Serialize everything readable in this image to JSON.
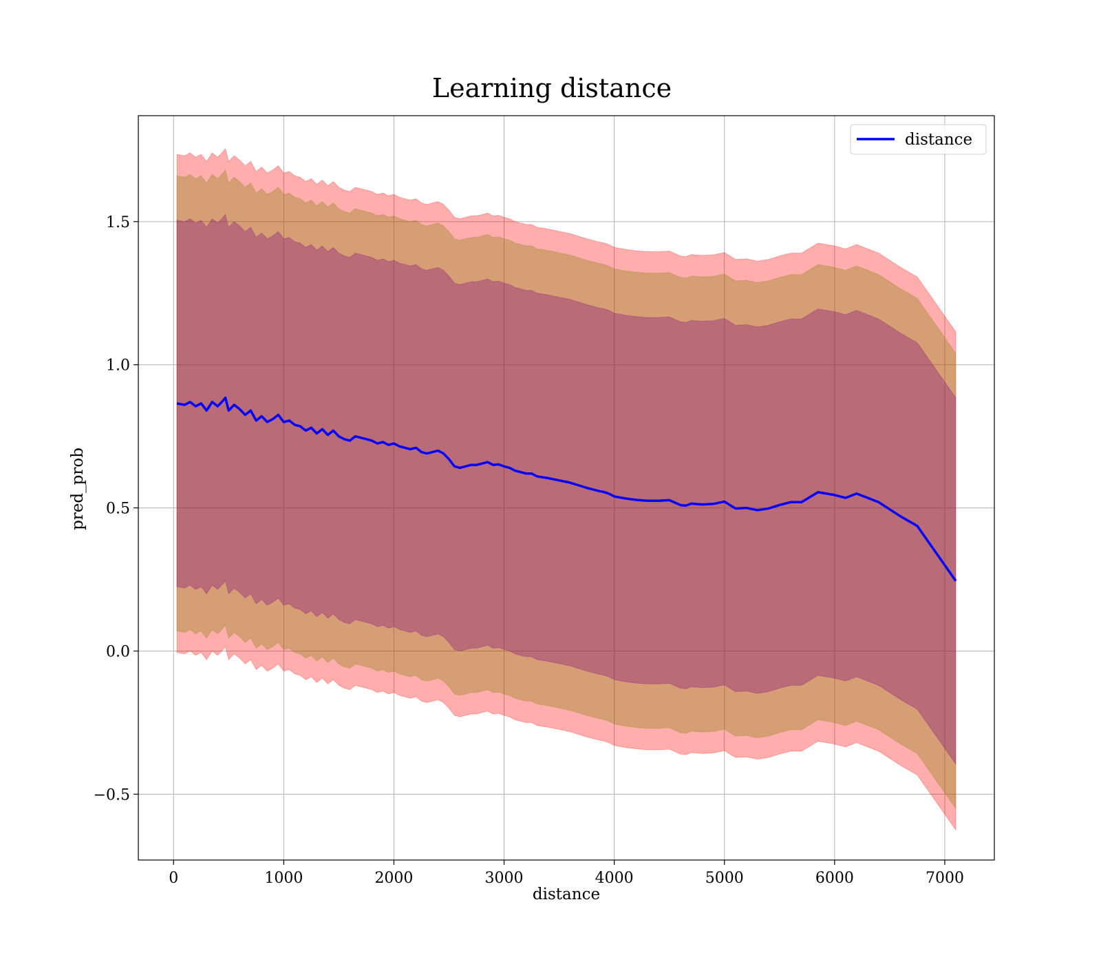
{
  "chart_data": {
    "type": "line",
    "title": "Learning distance",
    "xlabel": "distance",
    "ylabel": "pred_prob",
    "xlim": [
      -320,
      7450
    ],
    "ylim": [
      -0.73,
      1.87
    ],
    "xticks": [
      0,
      1000,
      2000,
      3000,
      4000,
      5000,
      6000,
      7000
    ],
    "yticks": [
      -0.5,
      0.0,
      0.5,
      1.0,
      1.5
    ],
    "xtick_labels": [
      "0",
      "1000",
      "2000",
      "3000",
      "4000",
      "5000",
      "6000",
      "7000"
    ],
    "ytick_labels": [
      "−0.5",
      "0.0",
      "0.5",
      "1.0",
      "1.5"
    ],
    "grid": true,
    "legend_position": "upper-right",
    "series": [
      {
        "name": "distance",
        "color": "#0000ff",
        "x": [
          30,
          100,
          150,
          200,
          250,
          300,
          350,
          400,
          450,
          470,
          500,
          550,
          600,
          650,
          700,
          750,
          800,
          850,
          900,
          950,
          1000,
          1050,
          1100,
          1150,
          1200,
          1250,
          1300,
          1350,
          1400,
          1450,
          1500,
          1550,
          1600,
          1650,
          1700,
          1750,
          1800,
          1850,
          1900,
          1950,
          2000,
          2050,
          2100,
          2150,
          2200,
          2250,
          2300,
          2350,
          2400,
          2450,
          2500,
          2550,
          2600,
          2650,
          2700,
          2750,
          2800,
          2850,
          2900,
          2950,
          3000,
          3050,
          3100,
          3150,
          3200,
          3250,
          3300,
          3350,
          3400,
          3450,
          3500,
          3550,
          3600,
          3650,
          3700,
          3750,
          3800,
          3850,
          3900,
          3950,
          4000,
          4100,
          4200,
          4300,
          4400,
          4500,
          4600,
          4650,
          4700,
          4800,
          4900,
          5000,
          5100,
          5200,
          5300,
          5400,
          5500,
          5600,
          5700,
          5850,
          6000,
          6100,
          6200,
          6300,
          6400,
          6500,
          6600,
          6750,
          7100
        ],
        "values": [
          0.865,
          0.86,
          0.87,
          0.855,
          0.865,
          0.84,
          0.87,
          0.855,
          0.875,
          0.885,
          0.84,
          0.86,
          0.845,
          0.825,
          0.84,
          0.805,
          0.82,
          0.8,
          0.81,
          0.825,
          0.8,
          0.805,
          0.79,
          0.785,
          0.77,
          0.78,
          0.76,
          0.775,
          0.755,
          0.77,
          0.75,
          0.74,
          0.735,
          0.75,
          0.745,
          0.74,
          0.735,
          0.725,
          0.73,
          0.72,
          0.725,
          0.715,
          0.71,
          0.705,
          0.71,
          0.695,
          0.69,
          0.695,
          0.7,
          0.69,
          0.67,
          0.645,
          0.64,
          0.645,
          0.65,
          0.65,
          0.655,
          0.66,
          0.65,
          0.652,
          0.645,
          0.64,
          0.63,
          0.625,
          0.62,
          0.62,
          0.61,
          0.607,
          0.604,
          0.6,
          0.596,
          0.592,
          0.588,
          0.582,
          0.576,
          0.57,
          0.565,
          0.56,
          0.556,
          0.55,
          0.54,
          0.533,
          0.528,
          0.525,
          0.525,
          0.527,
          0.51,
          0.508,
          0.515,
          0.512,
          0.514,
          0.522,
          0.498,
          0.5,
          0.492,
          0.498,
          0.51,
          0.52,
          0.52,
          0.555,
          0.545,
          0.535,
          0.55,
          0.535,
          0.52,
          0.495,
          0.47,
          0.437,
          0.245
        ]
      }
    ],
    "bands": [
      {
        "color": "#ff0000",
        "alpha": 0.32,
        "offset": 0.87
      },
      {
        "color": "#808000",
        "alpha": 0.32,
        "offset": 0.795
      },
      {
        "color": "#800080",
        "alpha": 0.32,
        "offset": 0.64
      }
    ]
  }
}
